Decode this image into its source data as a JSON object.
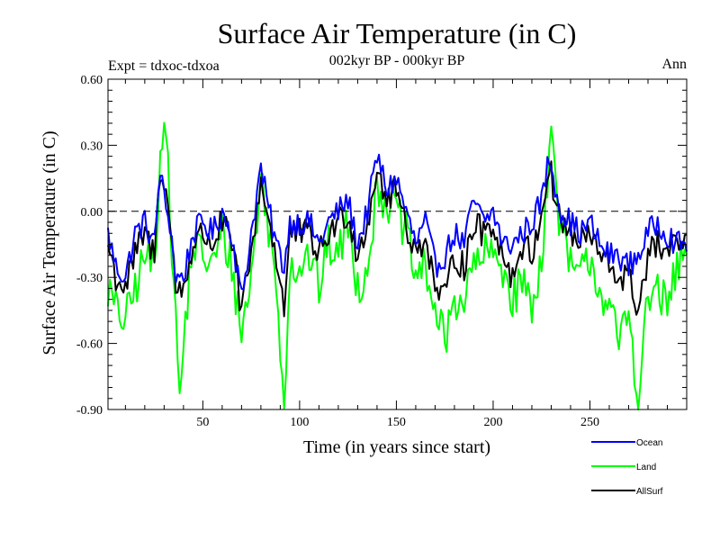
{
  "title": "Surface Air Temperature (in C)",
  "experiment": "Expt = tdxoc-tdxoa",
  "period": "002kyr BP - 000kyr BP",
  "season": "Ann",
  "chart_data": {
    "type": "line",
    "xlabel": "Time (in years since start)",
    "ylabel": "Surface Air Temperature (in C)",
    "xlim": [
      1,
      300
    ],
    "ylim": [
      -0.9,
      0.6
    ],
    "x_ticks": [
      50,
      100,
      150,
      200,
      250
    ],
    "y_ticks": [
      "0.60",
      "0.30",
      "0.00",
      "-0.30",
      "-0.60",
      "-0.90"
    ],
    "zero_line": true,
    "grid": false,
    "legend_position": "bottom-right",
    "series": [
      {
        "name": "Ocean",
        "color": "#0000ff",
        "anchors": [
          [
            1,
            -0.1
          ],
          [
            5,
            -0.25
          ],
          [
            10,
            -0.3
          ],
          [
            15,
            -0.1
          ],
          [
            20,
            -0.05
          ],
          [
            25,
            -0.15
          ],
          [
            28,
            0.2
          ],
          [
            30,
            0.05
          ],
          [
            33,
            -0.05
          ],
          [
            36,
            -0.3
          ],
          [
            40,
            -0.3
          ],
          [
            45,
            -0.1
          ],
          [
            50,
            -0.05
          ],
          [
            55,
            -0.1
          ],
          [
            60,
            0.0
          ],
          [
            65,
            -0.1
          ],
          [
            70,
            -0.4
          ],
          [
            75,
            -0.1
          ],
          [
            80,
            0.2
          ],
          [
            83,
            0.05
          ],
          [
            88,
            -0.15
          ],
          [
            92,
            -0.25
          ],
          [
            95,
            -0.05
          ],
          [
            100,
            -0.05
          ],
          [
            105,
            -0.05
          ],
          [
            110,
            -0.15
          ],
          [
            115,
            -0.05
          ],
          [
            120,
            0.0
          ],
          [
            125,
            0.05
          ],
          [
            130,
            -0.15
          ],
          [
            135,
            0.0
          ],
          [
            140,
            0.25
          ],
          [
            145,
            0.1
          ],
          [
            150,
            0.15
          ],
          [
            155,
            0.0
          ],
          [
            160,
            -0.15
          ],
          [
            165,
            -0.05
          ],
          [
            170,
            -0.25
          ],
          [
            175,
            -0.2
          ],
          [
            180,
            -0.1
          ],
          [
            185,
            -0.15
          ],
          [
            190,
            0.05
          ],
          [
            195,
            -0.05
          ],
          [
            200,
            0.0
          ],
          [
            205,
            -0.15
          ],
          [
            210,
            -0.15
          ],
          [
            215,
            -0.1
          ],
          [
            220,
            -0.05
          ],
          [
            225,
            0.05
          ],
          [
            229,
            0.25
          ],
          [
            235,
            0.0
          ],
          [
            240,
            -0.05
          ],
          [
            245,
            -0.1
          ],
          [
            250,
            -0.05
          ],
          [
            255,
            -0.15
          ],
          [
            260,
            -0.2
          ],
          [
            265,
            -0.2
          ],
          [
            270,
            -0.25
          ],
          [
            275,
            -0.2
          ],
          [
            280,
            -0.1
          ],
          [
            285,
            -0.05
          ],
          [
            290,
            -0.1
          ],
          [
            295,
            -0.15
          ],
          [
            300,
            -0.15
          ]
        ]
      },
      {
        "name": "Land",
        "color": "#00ff00",
        "anchors": [
          [
            1,
            -0.35
          ],
          [
            5,
            -0.45
          ],
          [
            10,
            -0.5
          ],
          [
            15,
            -0.35
          ],
          [
            20,
            -0.2
          ],
          [
            25,
            -0.25
          ],
          [
            28,
            0.25
          ],
          [
            30,
            0.5
          ],
          [
            33,
            0.0
          ],
          [
            36,
            -0.5
          ],
          [
            38,
            -0.85
          ],
          [
            42,
            -0.4
          ],
          [
            45,
            -0.15
          ],
          [
            50,
            -0.2
          ],
          [
            55,
            -0.25
          ],
          [
            60,
            -0.1
          ],
          [
            65,
            -0.25
          ],
          [
            70,
            -0.55
          ],
          [
            75,
            -0.3
          ],
          [
            80,
            0.15
          ],
          [
            83,
            0.0
          ],
          [
            88,
            -0.35
          ],
          [
            92,
            -0.85
          ],
          [
            95,
            -0.25
          ],
          [
            100,
            -0.25
          ],
          [
            105,
            -0.2
          ],
          [
            110,
            -0.35
          ],
          [
            115,
            -0.15
          ],
          [
            120,
            -0.2
          ],
          [
            125,
            -0.05
          ],
          [
            130,
            -0.35
          ],
          [
            135,
            -0.25
          ],
          [
            140,
            0.1
          ],
          [
            145,
            0.05
          ],
          [
            150,
            0.0
          ],
          [
            155,
            -0.1
          ],
          [
            160,
            -0.3
          ],
          [
            165,
            -0.25
          ],
          [
            170,
            -0.45
          ],
          [
            175,
            -0.6
          ],
          [
            180,
            -0.4
          ],
          [
            185,
            -0.4
          ],
          [
            190,
            -0.25
          ],
          [
            195,
            -0.2
          ],
          [
            200,
            -0.2
          ],
          [
            205,
            -0.25
          ],
          [
            210,
            -0.4
          ],
          [
            215,
            -0.3
          ],
          [
            220,
            -0.45
          ],
          [
            225,
            -0.2
          ],
          [
            230,
            0.35
          ],
          [
            235,
            -0.1
          ],
          [
            240,
            -0.25
          ],
          [
            245,
            -0.3
          ],
          [
            250,
            -0.2
          ],
          [
            255,
            -0.35
          ],
          [
            260,
            -0.45
          ],
          [
            265,
            -0.6
          ],
          [
            270,
            -0.45
          ],
          [
            275,
            -0.85
          ],
          [
            280,
            -0.4
          ],
          [
            285,
            -0.35
          ],
          [
            290,
            -0.45
          ],
          [
            295,
            -0.25
          ],
          [
            300,
            -0.2
          ]
        ]
      },
      {
        "name": "AllSurf",
        "color": "#000000",
        "anchors": [
          [
            1,
            -0.15
          ],
          [
            5,
            -0.3
          ],
          [
            10,
            -0.35
          ],
          [
            15,
            -0.2
          ],
          [
            20,
            -0.1
          ],
          [
            25,
            -0.2
          ],
          [
            28,
            0.2
          ],
          [
            30,
            0.15
          ],
          [
            33,
            -0.05
          ],
          [
            36,
            -0.35
          ],
          [
            40,
            -0.35
          ],
          [
            45,
            -0.15
          ],
          [
            50,
            -0.1
          ],
          [
            55,
            -0.15
          ],
          [
            60,
            -0.05
          ],
          [
            65,
            -0.15
          ],
          [
            70,
            -0.45
          ],
          [
            75,
            -0.2
          ],
          [
            80,
            0.15
          ],
          [
            83,
            0.0
          ],
          [
            88,
            -0.2
          ],
          [
            92,
            -0.45
          ],
          [
            95,
            -0.1
          ],
          [
            100,
            -0.1
          ],
          [
            105,
            -0.1
          ],
          [
            110,
            -0.2
          ],
          [
            115,
            -0.1
          ],
          [
            120,
            -0.05
          ],
          [
            125,
            0.0
          ],
          [
            130,
            -0.2
          ],
          [
            135,
            -0.05
          ],
          [
            140,
            0.2
          ],
          [
            145,
            0.05
          ],
          [
            150,
            0.1
          ],
          [
            155,
            -0.05
          ],
          [
            160,
            -0.2
          ],
          [
            165,
            -0.1
          ],
          [
            170,
            -0.35
          ],
          [
            175,
            -0.4
          ],
          [
            180,
            -0.2
          ],
          [
            185,
            -0.25
          ],
          [
            190,
            -0.05
          ],
          [
            195,
            -0.1
          ],
          [
            200,
            -0.05
          ],
          [
            205,
            -0.2
          ],
          [
            210,
            -0.3
          ],
          [
            215,
            -0.15
          ],
          [
            220,
            -0.2
          ],
          [
            225,
            0.0
          ],
          [
            229,
            0.2
          ],
          [
            235,
            -0.05
          ],
          [
            240,
            -0.1
          ],
          [
            245,
            -0.15
          ],
          [
            250,
            -0.1
          ],
          [
            255,
            -0.2
          ],
          [
            260,
            -0.25
          ],
          [
            265,
            -0.3
          ],
          [
            270,
            -0.3
          ],
          [
            275,
            -0.45
          ],
          [
            280,
            -0.2
          ],
          [
            285,
            -0.15
          ],
          [
            290,
            -0.2
          ],
          [
            295,
            -0.15
          ],
          [
            300,
            -0.15
          ]
        ]
      }
    ]
  }
}
